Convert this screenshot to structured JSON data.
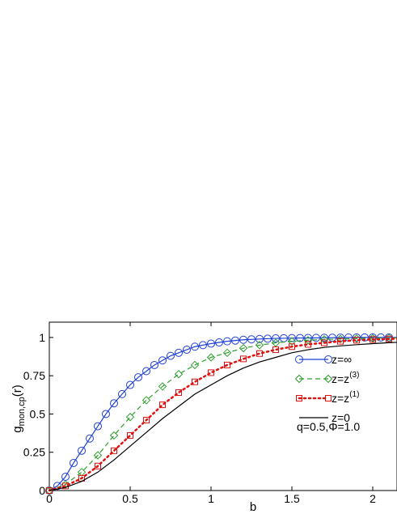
{
  "chart_data": {
    "type": "line",
    "xlabel": "b",
    "ylabel": {
      "main": "g",
      "sub": "mon,cp",
      "tail": "(r)"
    },
    "xlim": [
      0,
      2.15
    ],
    "ylim": [
      0,
      1.1
    ],
    "x_ticks": [
      0,
      0.5,
      1,
      1.5,
      2
    ],
    "x_tick_labels": [
      "0",
      "0.5",
      "1",
      "1.5",
      "2"
    ],
    "y_ticks": [
      0,
      0.25,
      0.5,
      0.75,
      1
    ],
    "y_tick_labels": [
      "0",
      "0.25",
      "0.5",
      "0.75",
      "1"
    ],
    "grid": false,
    "legend_position": "inside-right",
    "annotation": "q=0.5,Φ=1.0",
    "series": [
      {
        "name": "z=∞",
        "label_main": "z=∞",
        "label_sup": "",
        "color": "#1f3fd6",
        "dash": "",
        "marker": "circle",
        "x": [
          0,
          0.05,
          0.1,
          0.15,
          0.2,
          0.25,
          0.3,
          0.35,
          0.4,
          0.45,
          0.5,
          0.55,
          0.6,
          0.65,
          0.7,
          0.75,
          0.8,
          0.85,
          0.9,
          0.95,
          1.0,
          1.1,
          1.2,
          1.3,
          1.4,
          1.5,
          1.6,
          1.7,
          1.8,
          1.9,
          2.0,
          2.1,
          2.15
        ],
        "y": [
          0,
          0.03,
          0.09,
          0.18,
          0.26,
          0.34,
          0.42,
          0.5,
          0.57,
          0.63,
          0.69,
          0.74,
          0.78,
          0.82,
          0.85,
          0.88,
          0.9,
          0.92,
          0.94,
          0.95,
          0.96,
          0.975,
          0.985,
          0.99,
          0.994,
          0.996,
          0.997,
          0.998,
          0.999,
          1.0,
          1.0,
          1.0,
          1.0
        ],
        "marker_x": [
          0,
          0.05,
          0.1,
          0.15,
          0.2,
          0.25,
          0.3,
          0.35,
          0.4,
          0.45,
          0.5,
          0.55,
          0.6,
          0.65,
          0.7,
          0.75,
          0.8,
          0.85,
          0.9,
          0.95,
          1.0,
          1.05,
          1.1,
          1.15,
          1.2,
          1.25,
          1.3,
          1.35,
          1.4,
          1.45,
          1.5,
          1.55,
          1.6,
          1.65,
          1.7,
          1.75,
          1.8,
          1.85,
          1.9,
          1.95,
          2.0,
          2.05,
          2.1
        ]
      },
      {
        "name": "z=z(3)",
        "label_main": "z=z",
        "label_sup": "(3)",
        "color": "#2e9e2e",
        "dash": "6,4",
        "marker": "diamond",
        "x": [
          0,
          0.1,
          0.2,
          0.3,
          0.4,
          0.5,
          0.6,
          0.7,
          0.8,
          0.9,
          1.0,
          1.1,
          1.2,
          1.3,
          1.4,
          1.5,
          1.6,
          1.7,
          1.8,
          1.9,
          2.0,
          2.1,
          2.15
        ],
        "y": [
          0,
          0.04,
          0.12,
          0.23,
          0.36,
          0.48,
          0.59,
          0.68,
          0.76,
          0.82,
          0.87,
          0.9,
          0.93,
          0.95,
          0.965,
          0.975,
          0.982,
          0.987,
          0.99,
          0.993,
          0.995,
          0.997,
          0.998
        ],
        "marker_x": [
          0,
          0.1,
          0.2,
          0.3,
          0.4,
          0.5,
          0.6,
          0.7,
          0.8,
          0.9,
          1.0,
          1.1,
          1.2,
          1.3,
          1.4,
          1.5,
          1.6,
          1.7,
          1.8,
          1.9,
          2.0,
          2.1
        ]
      },
      {
        "name": "z=z(1)",
        "label_main": "z=z",
        "label_sup": "(1)",
        "color": "#e01010",
        "dash": "2,4",
        "marker": "square",
        "x": [
          0,
          0.1,
          0.2,
          0.3,
          0.4,
          0.5,
          0.6,
          0.7,
          0.8,
          0.9,
          1.0,
          1.1,
          1.2,
          1.3,
          1.4,
          1.5,
          1.6,
          1.7,
          1.8,
          1.9,
          2.0,
          2.1,
          2.15
        ],
        "y": [
          0,
          0.03,
          0.08,
          0.16,
          0.26,
          0.36,
          0.46,
          0.56,
          0.64,
          0.71,
          0.77,
          0.82,
          0.86,
          0.895,
          0.92,
          0.94,
          0.955,
          0.965,
          0.975,
          0.982,
          0.987,
          0.99,
          0.992
        ],
        "marker_x": [
          0,
          0.1,
          0.2,
          0.3,
          0.4,
          0.5,
          0.6,
          0.7,
          0.8,
          0.9,
          1.0,
          1.1,
          1.2,
          1.3,
          1.4,
          1.5,
          1.6,
          1.7,
          1.8,
          1.9,
          2.0,
          2.1
        ]
      },
      {
        "name": "z=0",
        "label_main": "z=0",
        "label_sup": "",
        "color": "#000000",
        "dash": "",
        "marker": "none",
        "x": [
          0,
          0.1,
          0.2,
          0.3,
          0.4,
          0.5,
          0.6,
          0.7,
          0.8,
          0.9,
          1.0,
          1.1,
          1.2,
          1.3,
          1.4,
          1.5,
          1.6,
          1.7,
          1.8,
          1.9,
          2.0,
          2.1,
          2.15
        ],
        "y": [
          0,
          0.02,
          0.06,
          0.12,
          0.2,
          0.29,
          0.38,
          0.47,
          0.55,
          0.63,
          0.69,
          0.75,
          0.8,
          0.84,
          0.87,
          0.9,
          0.92,
          0.935,
          0.945,
          0.953,
          0.96,
          0.966,
          0.968
        ],
        "marker_x": []
      }
    ]
  }
}
